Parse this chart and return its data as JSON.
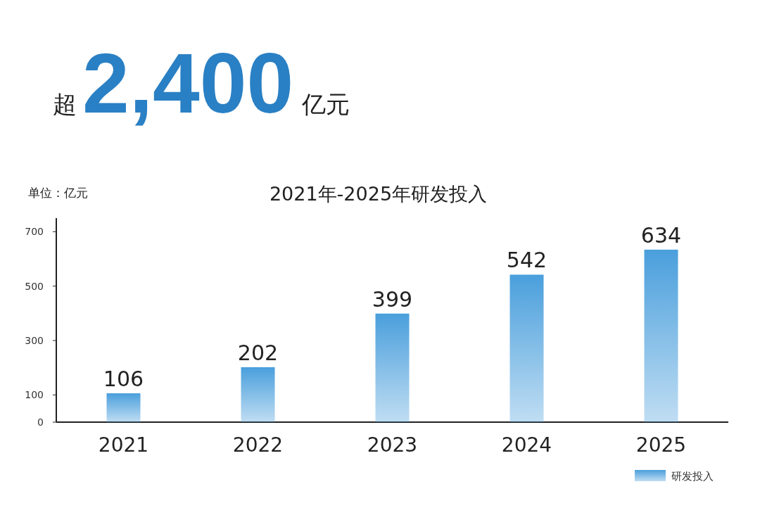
{
  "chart_data": {
    "type": "bar",
    "title": "2021年-2025年研发投入",
    "ylabel": "单位：亿元",
    "annotations": [
      "超",
      "2,400",
      "亿元"
    ],
    "categories": [
      "2021",
      "2022",
      "2023",
      "2024",
      "2025"
    ],
    "series": [
      {
        "name": "研发投入",
        "color": "#4a9fdc",
        "values": [
          106,
          202,
          399,
          542,
          634
        ]
      }
    ],
    "ylim": [
      0,
      750
    ],
    "yticks": [
      0,
      100,
      300,
      500,
      700
    ],
    "data_labels": true,
    "legend": "bottom right"
  }
}
